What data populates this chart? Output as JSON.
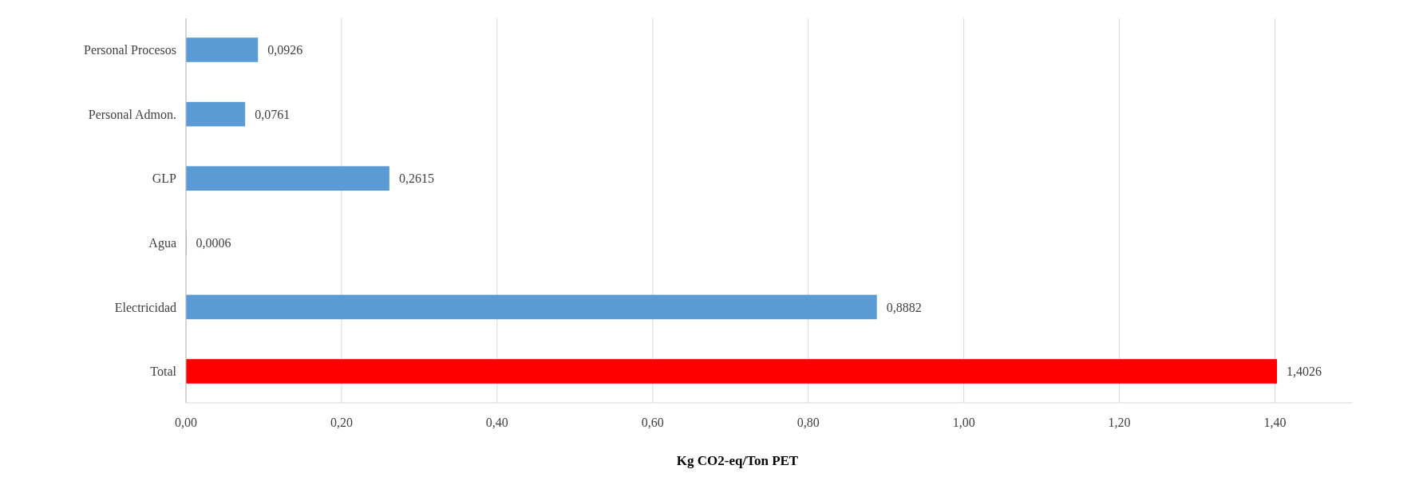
{
  "chart_data": {
    "type": "bar",
    "orientation": "horizontal",
    "xlabel": "Kg CO2-eq/Ton PET",
    "categories": [
      "Personal Procesos",
      "Personal Admon.",
      "GLP",
      "Agua",
      "Electricidad",
      "Total"
    ],
    "values": [
      0.0926,
      0.0761,
      0.2615,
      0.0006,
      0.8882,
      1.4026
    ],
    "colors": [
      "#5b9bd5",
      "#5b9bd5",
      "#5b9bd5",
      "#5b9bd5",
      "#5b9bd5",
      "#ff0000"
    ],
    "value_labels": [
      "0,0926",
      "0,0761",
      "0,2615",
      "0,0006",
      "0,8882",
      "1,4026"
    ],
    "xlim": [
      0,
      1.5
    ],
    "xticks": [
      {
        "value": 0,
        "label": "0,00"
      },
      {
        "value": 0.2,
        "label": "0,20"
      },
      {
        "value": 0.4,
        "label": "0,40"
      },
      {
        "value": 0.6,
        "label": "0,60"
      },
      {
        "value": 0.8,
        "label": "0,80"
      },
      {
        "value": 1,
        "label": "1,00"
      },
      {
        "value": 1.2,
        "label": "1,20"
      },
      {
        "value": 1.4,
        "label": "1,40"
      }
    ],
    "grid": "x"
  }
}
